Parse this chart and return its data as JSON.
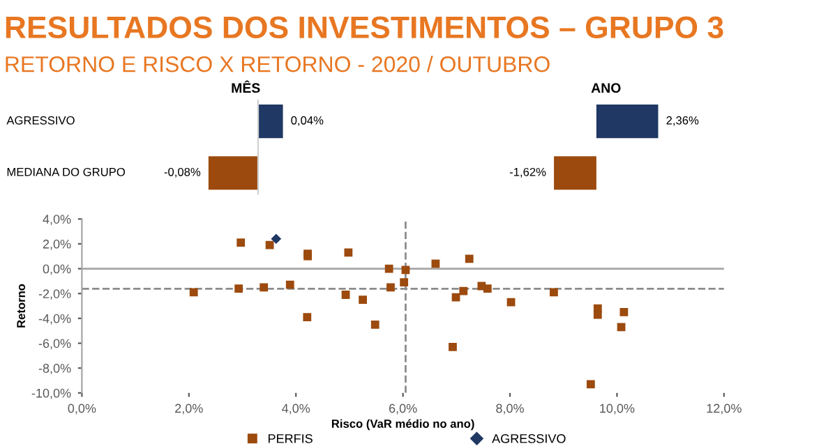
{
  "chart_data": [
    {
      "type": "other",
      "title": "RESULTADOS DOS INVESTIMENTOS – GRUPO 3",
      "subtitle": "RETORNO E RISCO X RETORNO - 2020 / OUTUBRO"
    },
    {
      "type": "bar",
      "orientation": "horizontal",
      "title": "MÊS",
      "categories": [
        "AGRESSIVO",
        "MEDIANA DO GRUPO"
      ],
      "values": [
        0.04,
        -0.08
      ],
      "colors": [
        "#1f3864",
        "#9c4a0e"
      ],
      "value_labels": [
        "0,04%",
        "-0,08%"
      ],
      "tick_labels": "y",
      "grid": false,
      "legend": false
    },
    {
      "type": "bar",
      "orientation": "horizontal",
      "title": "ANO",
      "categories": [
        null,
        null
      ],
      "values": [
        2.36,
        -1.62
      ],
      "colors": [
        "#1f3864",
        "#9c4a0e"
      ],
      "value_labels": [
        "2,36%",
        "-1,62%"
      ],
      "tick_labels": false,
      "grid": false,
      "legend": false
    },
    {
      "type": "scatter",
      "xlabel": "Risco (VaR médio no ano)",
      "ylabel": "Retorno",
      "xlim": [
        0,
        12
      ],
      "ylim": [
        -10,
        4
      ],
      "xticks": [
        {
          "value": 0,
          "label": "0,0%"
        },
        {
          "value": 2,
          "label": "2,0%"
        },
        {
          "value": 4,
          "label": "4,0%"
        },
        {
          "value": 6,
          "label": "6,0%"
        },
        {
          "value": 8,
          "label": "8,0%"
        },
        {
          "value": 10,
          "label": "10,0%"
        },
        {
          "value": 12,
          "label": "12,0%"
        }
      ],
      "yticks": [
        {
          "value": -10,
          "label": "-10,0%"
        },
        {
          "value": -8,
          "label": "-8,0%"
        },
        {
          "value": -6,
          "label": "-6,0%"
        },
        {
          "value": -4,
          "label": "-4,0%"
        },
        {
          "value": -2,
          "label": "-2,0%"
        },
        {
          "value": 0,
          "label": "0,0%"
        },
        {
          "value": 2,
          "label": "2,0%"
        },
        {
          "value": 4,
          "label": "4,0%"
        }
      ],
      "grid": false,
      "legend": "bottom",
      "ref_lines": [
        {
          "axis": "y",
          "value": 0,
          "label": null,
          "color": "#a6a6a6",
          "line_style": "solid"
        },
        {
          "axis": "x",
          "value": 6.05,
          "label": null,
          "color": "#8c8c8c",
          "line_style": "dashed"
        },
        {
          "axis": "y",
          "value": -1.62,
          "label": null,
          "color": "#8c8c8c",
          "line_style": "dashed"
        }
      ],
      "series": [
        {
          "name": "PERFIS",
          "color": "#9c4a0e",
          "marker": "square",
          "x": [
            2.09,
            2.97,
            2.93,
            3.51,
            3.4,
            3.89,
            4.22,
            4.22,
            4.21,
            4.98,
            4.93,
            5.25,
            5.48,
            5.74,
            5.77,
            6.05,
            6.02,
            6.61,
            7.24,
            6.99,
            7.13,
            6.93,
            7.47,
            7.58,
            8.02,
            8.82,
            9.64,
            9.64,
            10.13,
            10.08,
            9.51
          ],
          "values": [
            -1.9,
            2.1,
            -1.6,
            1.9,
            -1.5,
            -1.3,
            1.2,
            1.0,
            -3.9,
            1.3,
            -2.1,
            -2.5,
            -4.5,
            0.0,
            -1.5,
            -0.1,
            -1.1,
            0.4,
            0.8,
            -2.3,
            -1.8,
            -6.3,
            -1.4,
            -1.6,
            -2.7,
            -1.9,
            -3.2,
            -3.7,
            -3.5,
            -4.7,
            -9.3
          ]
        },
        {
          "name": "AGRESSIVO",
          "color": "#1f3864",
          "marker": "diamond",
          "x": [
            3.63
          ],
          "values": [
            2.4
          ]
        }
      ]
    }
  ]
}
